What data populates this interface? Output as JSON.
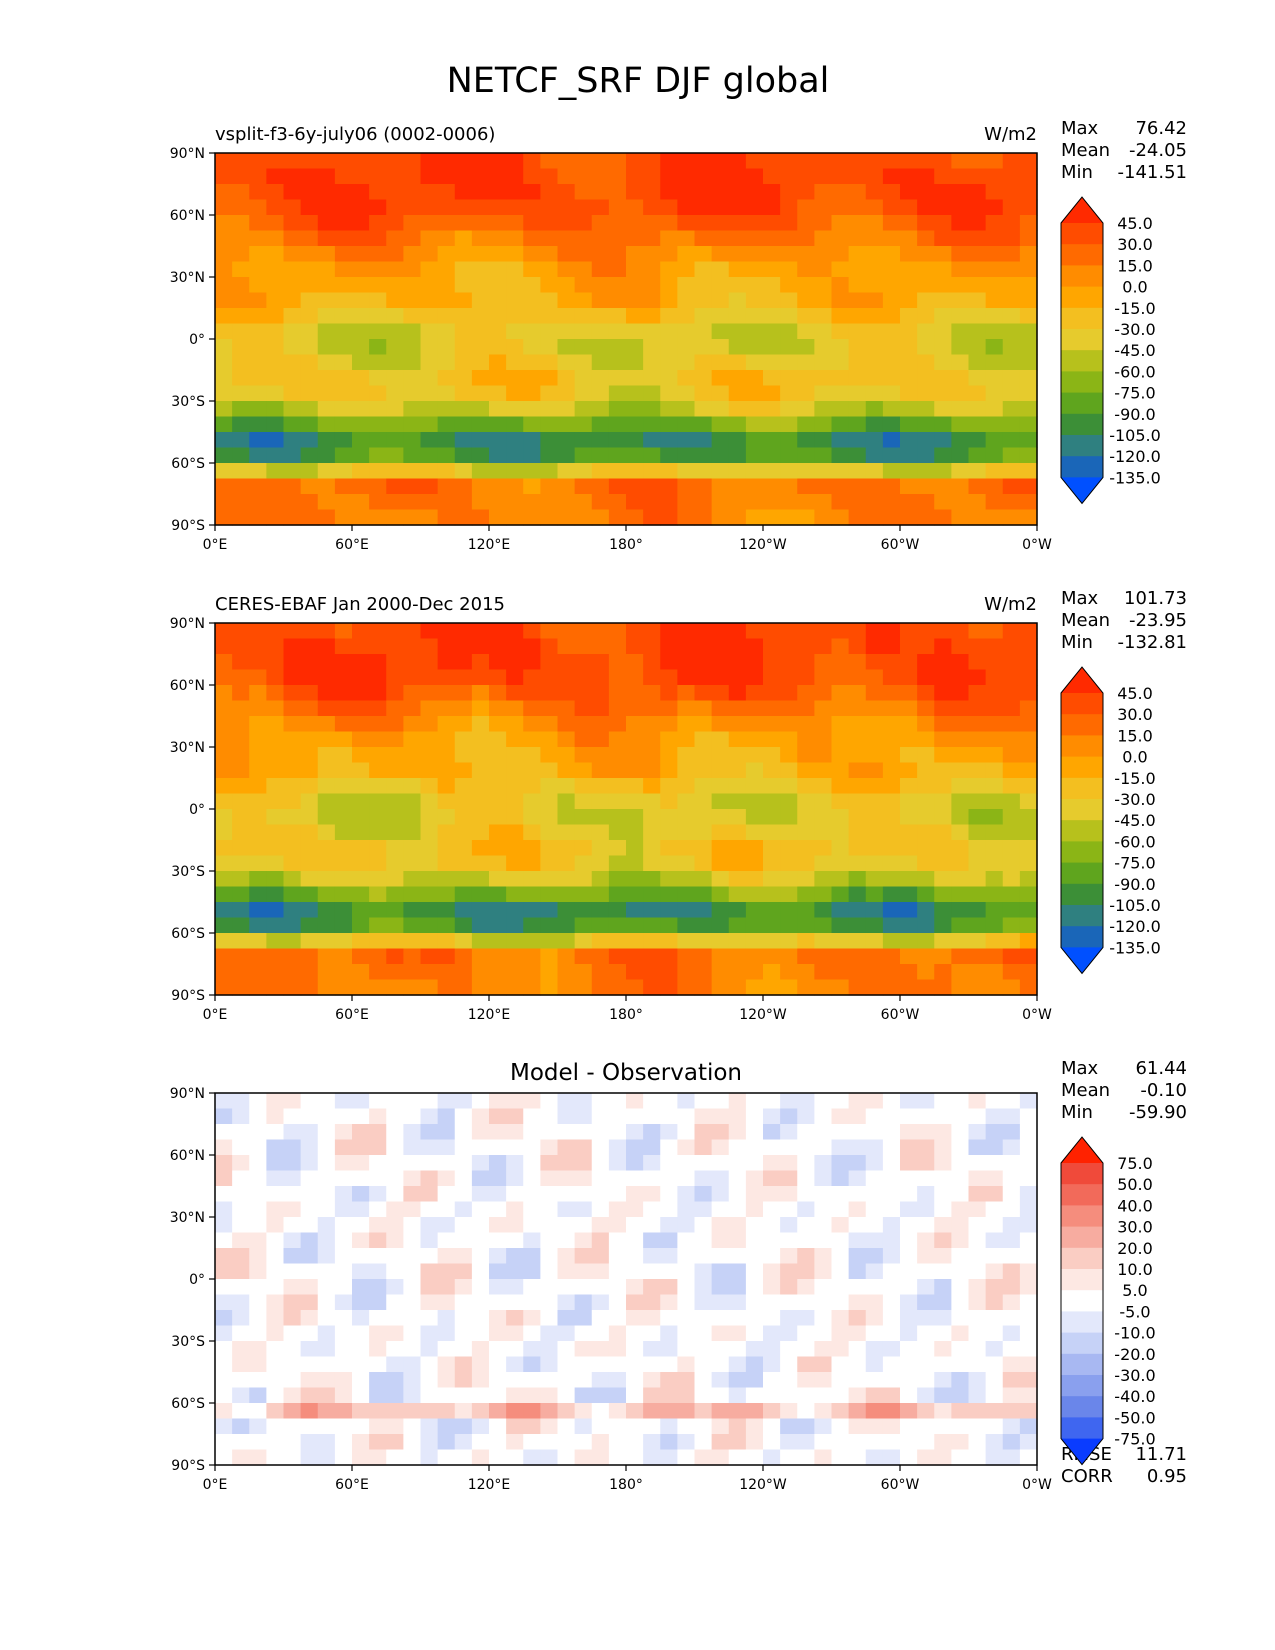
{
  "figure": {
    "title": "NETCF_SRF DJF global"
  },
  "axes": {
    "lat_ticks": [
      "90°N",
      "60°N",
      "30°N",
      "0°",
      "30°S",
      "60°S",
      "90°S"
    ],
    "lon_ticks": [
      "0°E",
      "60°E",
      "120°E",
      "180°",
      "120°W",
      "60°W",
      "0°W"
    ]
  },
  "chart_data": [
    {
      "type": "heatmap",
      "title_left": "vsplit-f3-6y-july06 (0002-0006)",
      "units": "W/m2",
      "xlim": [
        0,
        360
      ],
      "ylim": [
        -90,
        90
      ],
      "stats": {
        "max_label": "Max",
        "max": "76.42",
        "mean_label": "Mean",
        "mean": "-24.05",
        "min_label": "Min",
        "min": "-141.51"
      },
      "colorbar": {
        "levels": [
          "45.0",
          "30.0",
          "15.0",
          "0.0",
          "-15.0",
          "-30.0",
          "-45.0",
          "-60.0",
          "-75.0",
          "-90.0",
          "-105.0",
          "-120.0",
          "-135.0"
        ],
        "colors": [
          "#ff2a00",
          "#ff4c00",
          "#ff6a00",
          "#ff8c00",
          "#ffa600",
          "#f3bf20",
          "#e6cb2d",
          "#b7c11c",
          "#8bb516",
          "#5fa51e",
          "#3c8f37",
          "#2f8080",
          "#1a66b8",
          "#0050ff"
        ]
      }
    },
    {
      "type": "heatmap",
      "title_left": "CERES-EBAF Jan 2000-Dec 2015",
      "units": "W/m2",
      "xlim": [
        0,
        360
      ],
      "ylim": [
        -90,
        90
      ],
      "stats": {
        "max_label": "Max",
        "max": "101.73",
        "mean_label": "Mean",
        "mean": "-23.95",
        "min_label": "Min",
        "min": "-132.81"
      },
      "colorbar": {
        "levels": [
          "45.0",
          "30.0",
          "15.0",
          "0.0",
          "-15.0",
          "-30.0",
          "-45.0",
          "-60.0",
          "-75.0",
          "-90.0",
          "-105.0",
          "-120.0",
          "-135.0"
        ],
        "colors": [
          "#ff2a00",
          "#ff4c00",
          "#ff6a00",
          "#ff8c00",
          "#ffa600",
          "#f3bf20",
          "#e6cb2d",
          "#b7c11c",
          "#8bb516",
          "#5fa51e",
          "#3c8f37",
          "#2f8080",
          "#1a66b8",
          "#0050ff"
        ]
      }
    },
    {
      "type": "heatmap",
      "title_center": "Model - Observation",
      "xlim": [
        0,
        360
      ],
      "ylim": [
        -90,
        90
      ],
      "stats": {
        "max_label": "Max",
        "max": "61.44",
        "mean_label": "Mean",
        "mean": "-0.10",
        "min_label": "Min",
        "min": "-59.90"
      },
      "metrics": {
        "rmse_label": "RMSE",
        "rmse": "11.71",
        "corr_label": "CORR",
        "corr": "0.95"
      },
      "colorbar": {
        "levels": [
          "75.0",
          "50.0",
          "40.0",
          "30.0",
          "20.0",
          "10.0",
          "5.0",
          "-5.0",
          "-10.0",
          "-20.0",
          "-30.0",
          "-40.0",
          "-50.0",
          "-75.0"
        ],
        "colors": [
          "#ff2200",
          "#f04a3a",
          "#f26a5a",
          "#f58d7d",
          "#f7aca0",
          "#facdc3",
          "#fde8e3",
          "#ffffff",
          "#e3e8fb",
          "#c6d2f7",
          "#a8b8f2",
          "#8aa0ee",
          "#6a86ea",
          "#3f66f0",
          "#0a3cff"
        ]
      }
    }
  ]
}
